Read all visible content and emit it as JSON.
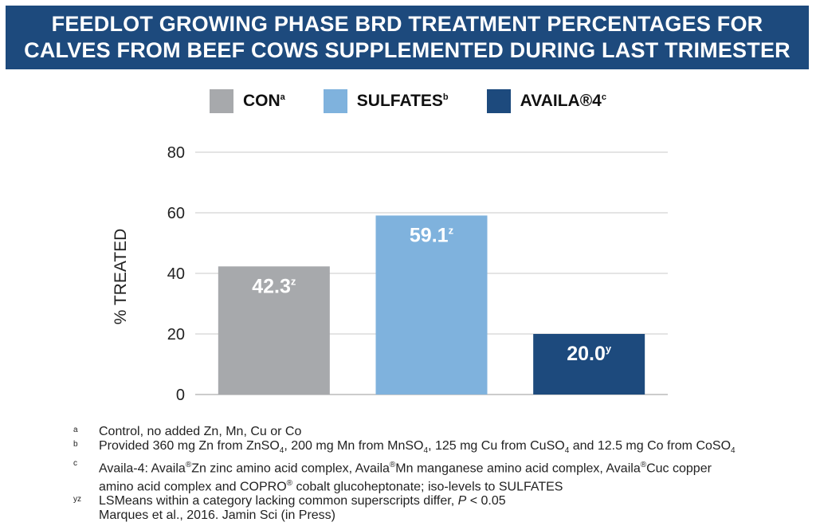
{
  "title": {
    "line1": "FEEDLOT GROWING PHASE BRD TREATMENT PERCENTAGES FOR",
    "line2": "CALVES FROM BEEF COWS SUPPLEMENTED DURING LAST TRIMESTER"
  },
  "legend": [
    {
      "label": "CON",
      "sup": "a",
      "color": "#a7a9ac"
    },
    {
      "label": "SULFATES",
      "sup": "b",
      "color": "#7fb2dd"
    },
    {
      "label": "AVAILA®4",
      "sup": "c",
      "color": "#1d4a7d"
    }
  ],
  "chart_data": {
    "type": "bar",
    "categories": [
      "CON",
      "SULFATES",
      "AVAILA®4"
    ],
    "values": [
      42.3,
      59.1,
      20.0
    ],
    "value_labels": [
      "42.3",
      "59.1",
      "20.0"
    ],
    "value_superscripts": [
      "z",
      "z",
      "y"
    ],
    "colors": [
      "#a7a9ac",
      "#7fb2dd",
      "#1d4a7d"
    ],
    "ylabel": "% TREATED",
    "ylim": [
      0,
      80
    ],
    "yticks": [
      0,
      20,
      40,
      60,
      80
    ],
    "grid": true
  },
  "footnotes": {
    "a": {
      "mark": "a",
      "text": "Control, no added Zn, Mn, Cu or Co"
    },
    "b": {
      "mark": "b",
      "p1": "Provided 360 mg Zn from ZnSO",
      "s1": "4",
      "p2": ", 200 mg Mn from MnSO",
      "s2": "4",
      "p3": ", 125 mg Cu from CuSO",
      "s3": "4",
      "p4": " and 12.5 mg Co from CoSO",
      "s4": "4"
    },
    "c": {
      "mark": "c",
      "p1": "Availa-4: Availa",
      "r1": "®",
      "p2": "Zn zinc amino acid complex, Availa",
      "r2": "®",
      "p3": "Mn manganese amino acid complex, Availa",
      "r3": "®",
      "p4": "Cuc copper",
      "p5": "amino acid complex and COPRO",
      "r4": "®",
      "p6": " cobalt glucoheptonate; iso-levels to SULFATES"
    },
    "yz": {
      "mark": "yz",
      "p1": "LSMeans within a category lacking common superscripts differ, ",
      "p_italic": "P",
      "p2": " < 0.05"
    },
    "citation": "Marques et al., 2016. Jamin Sci (in Press)"
  }
}
